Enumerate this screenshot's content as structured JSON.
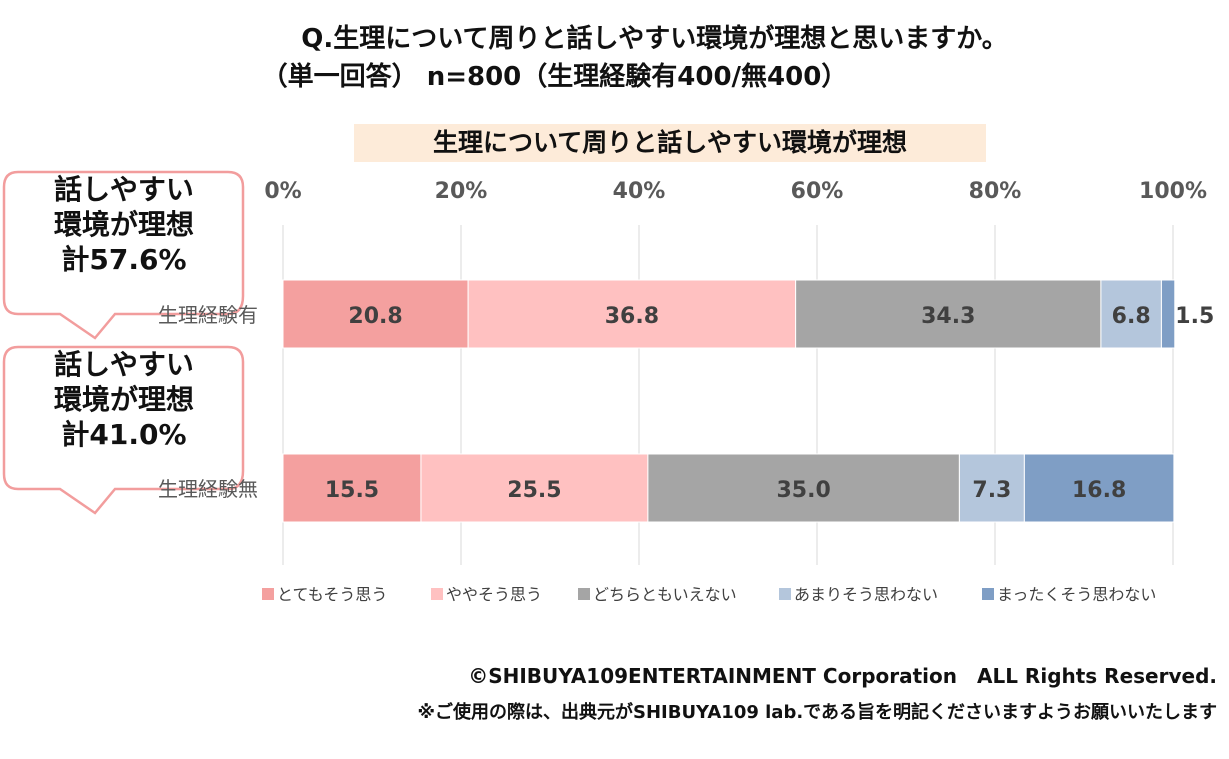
{
  "header": {
    "question": "Q.生理について周りと話しやすい環境が理想と思いますか。",
    "sample": "（単一回答） n=800（生理経験有400/無400）"
  },
  "callouts": [
    {
      "line1": "話しやすい",
      "line2": "環境が理想",
      "line3": "計57.6%"
    },
    {
      "line1": "話しやすい",
      "line2": "環境が理想",
      "line3": "計41.0%"
    }
  ],
  "footer": {
    "copyright": "©SHIBUYA109ENTERTAINMENT Corporation　ALL Rights Reserved.",
    "note": "※ご使用の際は、出典元がSHIBUYA109 lab.である旨を明記くださいますようお願いいたします"
  },
  "chart_data": {
    "type": "bar",
    "orientation": "horizontal-stacked-100",
    "title": "生理について周りと話しやすい環境が理想",
    "xlim": [
      0,
      100
    ],
    "x_ticks": [
      "0%",
      "20%",
      "40%",
      "60%",
      "80%",
      "100%"
    ],
    "grid": true,
    "legend_position": "bottom",
    "categories": [
      "生理経験有",
      "生理経験無"
    ],
    "series": [
      {
        "name": "とてもそう思う",
        "color": "#f4a09f",
        "values": [
          20.8,
          15.5
        ]
      },
      {
        "name": "ややそう思う",
        "color": "#ffc1c1",
        "values": [
          36.8,
          25.5
        ]
      },
      {
        "name": "どちらともいえない",
        "color": "#a5a5a5",
        "values": [
          34.3,
          35.0
        ]
      },
      {
        "name": "あまりそう思わない",
        "color": "#b4c6dc",
        "values": [
          6.8,
          7.3
        ]
      },
      {
        "name": "まったくそう思わない",
        "color": "#7f9ec5",
        "values": [
          1.5,
          16.8
        ]
      }
    ]
  }
}
